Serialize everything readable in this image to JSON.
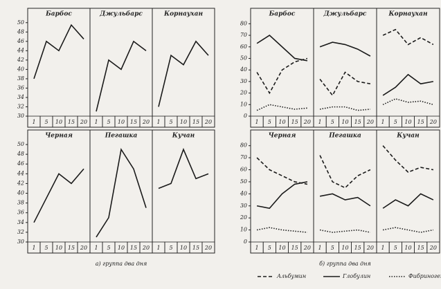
{
  "chart_data": [
    {
      "type": "line",
      "title": "Барбос",
      "caption": "а) группа два дня",
      "categories": [
        "1",
        "5",
        "10",
        "15",
        "20"
      ],
      "ylim": [
        30,
        51
      ],
      "yticks": [
        30,
        32,
        34,
        36,
        38,
        40,
        42,
        44,
        46,
        48,
        50
      ],
      "series": [
        {
          "color": "#1a1a1a",
          "dash": "solid",
          "values": [
            38,
            46,
            44,
            49.5,
            46.5
          ]
        }
      ]
    },
    {
      "type": "line",
      "title": "Джульбарс",
      "categories": [
        "1",
        "5",
        "10",
        "15",
        "20"
      ],
      "ylim": [
        30,
        51
      ],
      "series": [
        {
          "color": "#1a1a1a",
          "dash": "solid",
          "values": [
            31,
            42,
            40,
            46,
            44
          ]
        }
      ]
    },
    {
      "type": "line",
      "title": "Корнаухан",
      "categories": [
        "1",
        "5",
        "10",
        "15",
        "20"
      ],
      "ylim": [
        30,
        51
      ],
      "series": [
        {
          "color": "#1a1a1a",
          "dash": "solid",
          "values": [
            32,
            43,
            41,
            46,
            43
          ]
        }
      ]
    },
    {
      "type": "line",
      "title": "Черная",
      "categories": [
        "1",
        "5",
        "10",
        "15",
        "20"
      ],
      "ylim": [
        30,
        51
      ],
      "yticks": [
        30,
        32,
        34,
        36,
        38,
        40,
        42,
        44,
        46,
        48,
        50
      ],
      "series": [
        {
          "color": "#1a1a1a",
          "dash": "solid",
          "values": [
            34,
            39,
            44,
            42,
            45
          ]
        }
      ]
    },
    {
      "type": "line",
      "title": "Пегашка",
      "categories": [
        "1",
        "5",
        "10",
        "15",
        "20"
      ],
      "ylim": [
        30,
        51
      ],
      "series": [
        {
          "color": "#1a1a1a",
          "dash": "solid",
          "values": [
            31,
            35,
            49,
            45,
            37
          ]
        }
      ]
    },
    {
      "type": "line",
      "title": "Кучан",
      "categories": [
        "1",
        "5",
        "10",
        "15",
        "20"
      ],
      "ylim": [
        30,
        51
      ],
      "series": [
        {
          "color": "#1a1a1a",
          "dash": "solid",
          "values": [
            41,
            42,
            49,
            43,
            44
          ]
        }
      ]
    },
    {
      "type": "line",
      "title": "Барбос",
      "caption": "б) группа два дня",
      "categories": [
        "1",
        "5",
        "10",
        "15",
        "20"
      ],
      "ylim": [
        0,
        85
      ],
      "yticks": [
        0,
        10,
        20,
        30,
        40,
        50,
        60,
        70,
        80
      ],
      "series": [
        {
          "name": "Альбумин",
          "color": "#1a1a1a",
          "dash": "dashed",
          "values": [
            38,
            20,
            40,
            47,
            50
          ]
        },
        {
          "name": "Глобулин",
          "color": "#1a1a1a",
          "dash": "solid",
          "values": [
            63,
            70,
            60,
            50,
            48
          ]
        },
        {
          "name": "Фибриноген",
          "color": "#1a1a1a",
          "dash": "dotted",
          "values": [
            5,
            10,
            8,
            6,
            7
          ]
        }
      ]
    },
    {
      "type": "line",
      "title": "Джульбарс",
      "categories": [
        "1",
        "5",
        "10",
        "15",
        "20"
      ],
      "ylim": [
        0,
        85
      ],
      "series": [
        {
          "color": "#1a1a1a",
          "dash": "dashed",
          "values": [
            32,
            18,
            38,
            30,
            28
          ]
        },
        {
          "color": "#1a1a1a",
          "dash": "solid",
          "values": [
            60,
            64,
            62,
            58,
            52
          ]
        },
        {
          "color": "#1a1a1a",
          "dash": "dotted",
          "values": [
            6,
            8,
            8,
            5,
            6
          ]
        }
      ]
    },
    {
      "type": "line",
      "title": "Корнаухан",
      "categories": [
        "1",
        "5",
        "10",
        "15",
        "20"
      ],
      "ylim": [
        0,
        85
      ],
      "series": [
        {
          "color": "#1a1a1a",
          "dash": "dashed",
          "values": [
            70,
            75,
            62,
            68,
            62
          ]
        },
        {
          "color": "#1a1a1a",
          "dash": "solid",
          "values": [
            18,
            25,
            36,
            28,
            30
          ]
        },
        {
          "color": "#1a1a1a",
          "dash": "dotted",
          "values": [
            10,
            15,
            12,
            13,
            10
          ]
        }
      ]
    },
    {
      "type": "line",
      "title": "Черная",
      "categories": [
        "1",
        "5",
        "10",
        "15",
        "20"
      ],
      "ylim": [
        0,
        85
      ],
      "yticks": [
        0,
        10,
        20,
        30,
        40,
        50,
        60,
        70,
        80
      ],
      "series": [
        {
          "color": "#1a1a1a",
          "dash": "dashed",
          "values": [
            70,
            60,
            55,
            50,
            48
          ]
        },
        {
          "color": "#1a1a1a",
          "dash": "solid",
          "values": [
            30,
            28,
            40,
            48,
            50
          ]
        },
        {
          "color": "#1a1a1a",
          "dash": "dotted",
          "values": [
            10,
            12,
            10,
            9,
            8
          ]
        }
      ]
    },
    {
      "type": "line",
      "title": "Пегашка",
      "categories": [
        "1",
        "5",
        "10",
        "15",
        "20"
      ],
      "ylim": [
        0,
        85
      ],
      "series": [
        {
          "color": "#1a1a1a",
          "dash": "dashed",
          "values": [
            72,
            50,
            45,
            55,
            60
          ]
        },
        {
          "color": "#1a1a1a",
          "dash": "solid",
          "values": [
            38,
            40,
            35,
            37,
            30
          ]
        },
        {
          "color": "#1a1a1a",
          "dash": "dotted",
          "values": [
            10,
            8,
            9,
            10,
            8
          ]
        }
      ]
    },
    {
      "type": "line",
      "title": "Кучан",
      "categories": [
        "1",
        "5",
        "10",
        "15",
        "20"
      ],
      "ylim": [
        0,
        85
      ],
      "series": [
        {
          "color": "#1a1a1a",
          "dash": "dashed",
          "values": [
            80,
            68,
            58,
            62,
            60
          ]
        },
        {
          "color": "#1a1a1a",
          "dash": "solid",
          "values": [
            28,
            35,
            30,
            40,
            35
          ]
        },
        {
          "color": "#1a1a1a",
          "dash": "dotted",
          "values": [
            10,
            12,
            10,
            8,
            10
          ]
        }
      ]
    }
  ]
}
